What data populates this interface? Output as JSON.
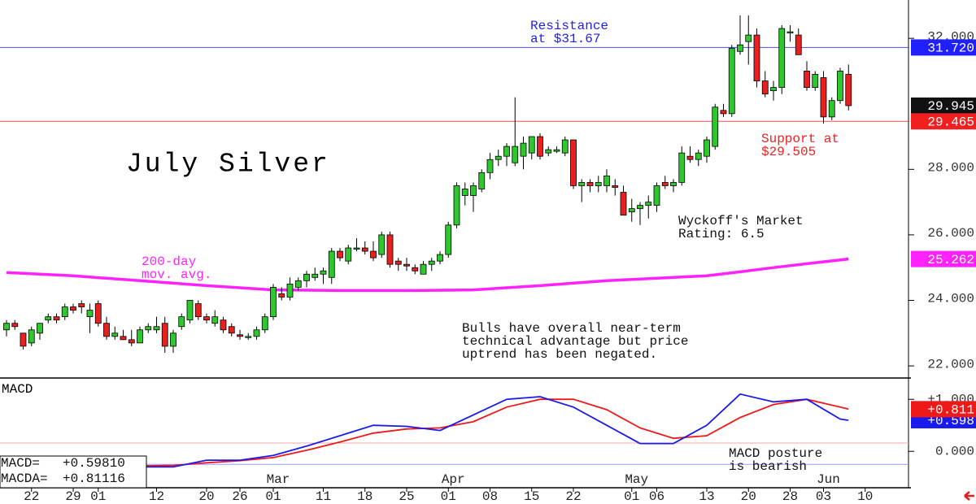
{
  "chart_data": [
    {
      "type": "candlestick",
      "title": "July Silver",
      "xlim": [
        -0.78,
        108
      ],
      "ylim": [
        21.63,
        33.17
      ],
      "yticks": [
        {
          "value": 22,
          "label": "22.000"
        },
        {
          "value": 24,
          "label": "24.000"
        },
        {
          "value": 26,
          "label": "26.000"
        },
        {
          "value": 28,
          "label": "28.000"
        },
        {
          "value": 32,
          "label": "32.000"
        }
      ],
      "up_color": "#2ec82e",
      "down_color": "#e82020",
      "ohlc": [
        [
          23.1,
          23.4,
          22.9,
          23.3
        ],
        [
          23.3,
          23.4,
          23.1,
          23.2
        ],
        [
          23.0,
          23.0,
          22.5,
          22.6
        ],
        [
          22.7,
          23.2,
          22.6,
          23.1
        ],
        [
          23.0,
          23.3,
          22.8,
          23.3
        ],
        [
          23.4,
          23.6,
          23.3,
          23.5
        ],
        [
          23.5,
          23.6,
          23.3,
          23.4
        ],
        [
          23.5,
          23.9,
          23.4,
          23.8
        ],
        [
          23.8,
          23.9,
          23.6,
          23.7
        ],
        [
          23.9,
          24.0,
          23.6,
          23.8
        ],
        [
          23.5,
          23.9,
          23.0,
          23.7
        ],
        [
          23.9,
          24.0,
          23.2,
          23.3
        ],
        [
          23.3,
          23.5,
          22.8,
          22.9
        ],
        [
          22.9,
          23.2,
          22.8,
          23.0
        ],
        [
          22.9,
          23.1,
          22.8,
          22.8
        ],
        [
          22.8,
          23.1,
          22.6,
          22.7
        ],
        [
          22.7,
          23.2,
          22.7,
          23.1
        ],
        [
          23.1,
          23.3,
          23.0,
          23.2
        ],
        [
          23.1,
          23.5,
          23.0,
          23.2
        ],
        [
          23.3,
          23.5,
          22.4,
          22.6
        ],
        [
          22.6,
          23.1,
          22.4,
          23.0
        ],
        [
          23.2,
          23.6,
          23.1,
          23.5
        ],
        [
          23.4,
          24.0,
          23.3,
          24.0
        ],
        [
          23.9,
          24.0,
          23.4,
          23.5
        ],
        [
          23.5,
          23.6,
          23.3,
          23.4
        ],
        [
          23.3,
          23.7,
          23.2,
          23.5
        ],
        [
          23.4,
          23.5,
          23.0,
          23.1
        ],
        [
          23.2,
          23.3,
          22.9,
          23.0
        ],
        [
          22.95,
          23.1,
          22.8,
          22.9
        ],
        [
          22.9,
          23.0,
          22.8,
          22.9
        ],
        [
          22.9,
          23.2,
          22.8,
          23.1
        ],
        [
          23.1,
          23.6,
          23.0,
          23.5
        ],
        [
          23.5,
          24.5,
          23.4,
          24.4
        ],
        [
          24.2,
          24.4,
          24.0,
          24.1
        ],
        [
          24.1,
          24.7,
          24.0,
          24.5
        ],
        [
          24.4,
          24.7,
          24.3,
          24.6
        ],
        [
          24.6,
          24.9,
          24.4,
          24.8
        ],
        [
          24.7,
          25.0,
          24.6,
          24.8
        ],
        [
          24.8,
          25.0,
          24.5,
          24.9
        ],
        [
          24.7,
          25.6,
          24.5,
          25.5
        ],
        [
          25.5,
          25.6,
          25.2,
          25.3
        ],
        [
          25.2,
          25.7,
          25.1,
          25.6
        ],
        [
          25.6,
          25.9,
          25.5,
          25.6
        ],
        [
          25.6,
          25.8,
          25.4,
          25.5
        ],
        [
          25.5,
          25.8,
          25.2,
          25.3
        ],
        [
          25.4,
          26.1,
          25.3,
          26.0
        ],
        [
          26.0,
          26.1,
          25.0,
          25.1
        ],
        [
          25.2,
          25.3,
          24.9,
          25.1
        ],
        [
          25.1,
          25.3,
          24.9,
          25.05
        ],
        [
          25.0,
          25.1,
          24.8,
          24.9
        ],
        [
          24.8,
          25.2,
          24.8,
          25.1
        ],
        [
          25.1,
          25.3,
          24.9,
          25.2
        ],
        [
          25.2,
          25.5,
          25.1,
          25.4
        ],
        [
          25.4,
          26.4,
          25.3,
          26.3
        ],
        [
          26.3,
          27.6,
          26.2,
          27.5
        ],
        [
          27.2,
          27.6,
          26.9,
          27.4
        ],
        [
          27.2,
          27.6,
          26.7,
          27.5
        ],
        [
          27.4,
          28.0,
          27.3,
          27.9
        ],
        [
          27.9,
          28.5,
          27.7,
          28.3
        ],
        [
          28.3,
          28.6,
          28.1,
          28.4
        ],
        [
          28.4,
          28.8,
          28.1,
          28.7
        ],
        [
          28.2,
          30.2,
          28.1,
          28.7
        ],
        [
          28.4,
          29.0,
          28.0,
          28.8
        ],
        [
          28.5,
          29.0,
          28.3,
          29.0
        ],
        [
          29.0,
          29.1,
          28.3,
          28.4
        ],
        [
          28.5,
          28.7,
          28.4,
          28.6
        ],
        [
          28.55,
          28.7,
          28.5,
          28.6
        ],
        [
          28.5,
          29.0,
          28.4,
          28.9
        ],
        [
          28.9,
          28.9,
          27.4,
          27.5
        ],
        [
          27.5,
          27.7,
          27.0,
          27.6
        ],
        [
          27.6,
          27.7,
          27.3,
          27.5
        ],
        [
          27.5,
          27.8,
          27.3,
          27.6
        ],
        [
          27.5,
          28.0,
          27.3,
          27.8
        ],
        [
          27.5,
          27.7,
          27.2,
          27.45
        ],
        [
          27.3,
          27.5,
          26.6,
          26.6
        ],
        [
          26.7,
          27.1,
          26.4,
          26.8
        ],
        [
          26.8,
          27.0,
          26.3,
          26.9
        ],
        [
          26.9,
          27.2,
          26.5,
          27.0
        ],
        [
          26.9,
          27.6,
          26.7,
          27.5
        ],
        [
          27.6,
          27.8,
          27.4,
          27.5
        ],
        [
          27.5,
          27.7,
          27.3,
          27.6
        ],
        [
          27.6,
          28.7,
          27.5,
          28.5
        ],
        [
          28.4,
          28.7,
          28.2,
          28.3
        ],
        [
          28.3,
          28.6,
          28.1,
          28.5
        ],
        [
          28.4,
          29.0,
          28.2,
          28.9
        ],
        [
          28.7,
          30.0,
          28.6,
          29.9
        ],
        [
          29.8,
          30.0,
          29.6,
          29.7
        ],
        [
          29.7,
          31.8,
          29.6,
          31.7
        ],
        [
          31.6,
          32.7,
          31.5,
          31.8
        ],
        [
          31.9,
          32.7,
          31.2,
          32.1
        ],
        [
          32.1,
          32.3,
          30.5,
          30.7
        ],
        [
          30.7,
          31.0,
          30.2,
          30.3
        ],
        [
          30.4,
          30.7,
          30.1,
          30.5
        ],
        [
          30.5,
          32.4,
          30.3,
          32.3
        ],
        [
          32.2,
          32.4,
          31.9,
          32.2
        ],
        [
          32.1,
          32.3,
          31.5,
          31.5
        ],
        [
          31.0,
          31.3,
          30.4,
          30.5
        ],
        [
          30.5,
          31.0,
          30.4,
          30.9
        ],
        [
          30.8,
          31.0,
          29.4,
          29.6
        ],
        [
          29.6,
          30.2,
          29.5,
          30.1
        ],
        [
          30.1,
          31.1,
          30.0,
          31.0
        ],
        [
          30.9,
          31.2,
          29.8,
          29.945
        ]
      ],
      "moving_average": {
        "color": "#ff22ff",
        "x": [
          0,
          8,
          16,
          24,
          32,
          40,
          48,
          56,
          64,
          72,
          80,
          84,
          88,
          92,
          96,
          101
        ],
        "values": [
          24.85,
          24.75,
          24.6,
          24.45,
          24.32,
          24.3,
          24.3,
          24.32,
          24.45,
          24.6,
          24.7,
          24.75,
          24.87,
          25.0,
          25.12,
          25.262
        ]
      },
      "price_labels": [
        {
          "value": 31.72,
          "label": "31.720",
          "color": "#2020ff",
          "line": true
        },
        {
          "value": 29.945,
          "label": "29.945",
          "color": "#111111",
          "line": false
        },
        {
          "value": 29.465,
          "label": "29.465",
          "color": "#f02020",
          "line": true
        },
        {
          "value": 25.262,
          "label": "25.262",
          "color": "#ff22ff",
          "line": false
        }
      ],
      "annotations": {
        "resistance": [
          "Resistance",
          "at $31.67"
        ],
        "support": [
          "Support at",
          "$29.505"
        ],
        "ma": [
          "200-day",
          "mov. avg."
        ],
        "rating": [
          "Wyckoff's Market",
          "Rating: 6.5"
        ],
        "comment": [
          "Bulls have overall near-term",
          "technical advantage but price",
          "uptrend has been negated."
        ]
      },
      "day_labels": [
        {
          "index": 3,
          "label": "22"
        },
        {
          "index": 8,
          "label": "29"
        },
        {
          "index": 11,
          "label": "01"
        },
        {
          "index": 18,
          "label": "12"
        },
        {
          "index": 24,
          "label": "20"
        },
        {
          "index": 28,
          "label": "26"
        },
        {
          "index": 32,
          "label": "01"
        },
        {
          "index": 38,
          "label": "11"
        },
        {
          "index": 43,
          "label": "18"
        },
        {
          "index": 48,
          "label": "25"
        },
        {
          "index": 53,
          "label": "01"
        },
        {
          "index": 58,
          "label": "08"
        },
        {
          "index": 63,
          "label": "15"
        },
        {
          "index": 68,
          "label": "22"
        },
        {
          "index": 75,
          "label": "01"
        },
        {
          "index": 78,
          "label": "06"
        },
        {
          "index": 84,
          "label": "13"
        },
        {
          "index": 89,
          "label": "20"
        },
        {
          "index": 94,
          "label": "28"
        },
        {
          "index": 98,
          "label": "03"
        },
        {
          "index": 103,
          "label": "10"
        }
      ],
      "month_labels": [
        {
          "index": 32,
          "label": "Mar"
        },
        {
          "index": 53,
          "label": "Apr"
        },
        {
          "index": 75,
          "label": "May"
        },
        {
          "index": 98,
          "label": "Jun"
        }
      ]
    },
    {
      "type": "line",
      "title": "MACD",
      "ylim": [
        -0.7,
        1.41
      ],
      "yticks": [
        {
          "value": 1,
          "label": "+1.000"
        },
        {
          "value": 0,
          "label": "0.000"
        }
      ],
      "hlines": [
        {
          "value": 0.16,
          "color": "#f4a8a8"
        },
        {
          "value": -0.25,
          "color": "#9a9aff"
        }
      ],
      "series": [
        {
          "name": "MACD=",
          "readout": "+0.59810",
          "color": "#1a1aee",
          "end_label": "+0.598",
          "x": [
            16,
            20,
            24,
            28,
            32,
            36,
            40,
            44,
            48,
            52,
            56,
            60,
            64,
            68,
            72,
            76,
            80,
            84,
            88,
            92,
            96,
            100,
            101
          ],
          "values": [
            -0.3,
            -0.3,
            -0.17,
            -0.17,
            -0.08,
            0.1,
            0.3,
            0.5,
            0.48,
            0.4,
            0.7,
            1.0,
            1.05,
            0.85,
            0.5,
            0.15,
            0.15,
            0.5,
            1.1,
            0.95,
            1.0,
            0.62,
            0.598
          ]
        },
        {
          "name": "MACDA=",
          "readout": "+0.81116",
          "color": "#ee1a1a",
          "end_label": "+0.811",
          "x": [
            16,
            20,
            24,
            28,
            32,
            36,
            40,
            44,
            48,
            52,
            56,
            60,
            64,
            68,
            72,
            76,
            80,
            84,
            88,
            92,
            96,
            100,
            101
          ],
          "values": [
            -0.28,
            -0.27,
            -0.22,
            -0.18,
            -0.12,
            0.02,
            0.18,
            0.35,
            0.43,
            0.45,
            0.57,
            0.85,
            1.0,
            1.0,
            0.8,
            0.45,
            0.25,
            0.3,
            0.65,
            0.9,
            1.0,
            0.85,
            0.811
          ]
        }
      ],
      "annotation": [
        "MACD posture",
        "is bearish"
      ]
    }
  ]
}
